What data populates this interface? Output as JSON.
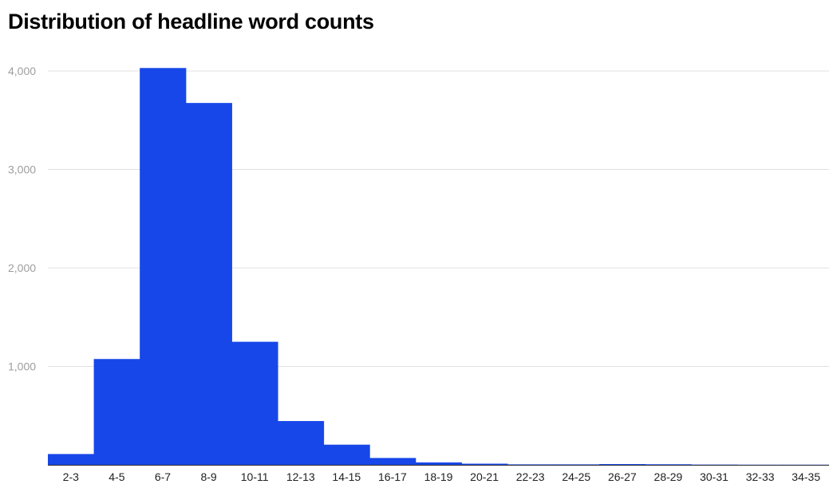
{
  "chart_data": {
    "type": "bar",
    "title": "Distribution of headline word counts",
    "xlabel": "",
    "ylabel": "",
    "categories": [
      "2-3",
      "4-5",
      "6-7",
      "8-9",
      "10-11",
      "12-13",
      "14-15",
      "16-17",
      "18-19",
      "20-21",
      "22-23",
      "24-25",
      "26-27",
      "28-29",
      "30-31",
      "32-33",
      "34-35"
    ],
    "values": [
      110,
      1075,
      4030,
      3675,
      1250,
      445,
      205,
      70,
      25,
      12,
      5,
      5,
      8,
      6,
      3,
      2,
      2
    ],
    "ylim": [
      0,
      4000
    ],
    "yticks": [
      {
        "value": 1000,
        "label": "1,000"
      },
      {
        "value": 2000,
        "label": "2,000"
      },
      {
        "value": 3000,
        "label": "3,000"
      },
      {
        "value": 4000,
        "label": "4,000"
      }
    ],
    "grid": true,
    "legend": "none",
    "colors": {
      "bar": "#1747e8",
      "grid": "#e0e0e0",
      "baseline": "#333333"
    }
  }
}
